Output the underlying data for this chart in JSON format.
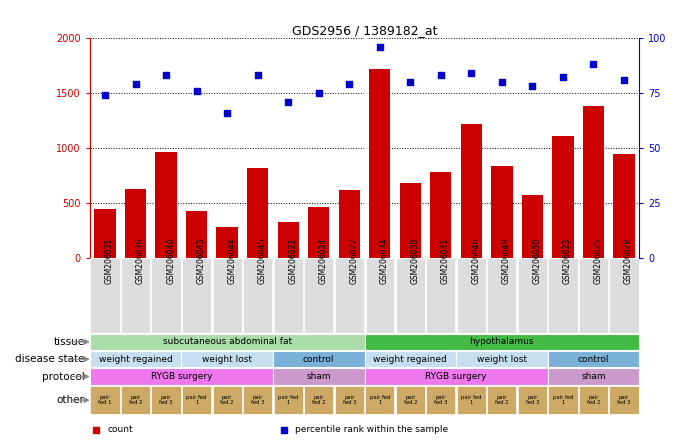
{
  "title": "GDS2956 / 1389182_at",
  "samples": [
    "GSM206031",
    "GSM206036",
    "GSM206040",
    "GSM206043",
    "GSM206044",
    "GSM206045",
    "GSM206022",
    "GSM206024",
    "GSM206027",
    "GSM206034",
    "GSM206038",
    "GSM206041",
    "GSM206046",
    "GSM206049",
    "GSM206050",
    "GSM206023",
    "GSM206025",
    "GSM206028"
  ],
  "bar_values": [
    450,
    630,
    960,
    430,
    280,
    820,
    330,
    470,
    620,
    1720,
    680,
    780,
    1220,
    840,
    570,
    1110,
    1380,
    950
  ],
  "dot_values_pct": [
    74,
    79,
    83,
    76,
    66,
    83,
    71,
    75,
    79,
    96,
    80,
    83,
    84,
    80,
    78,
    82,
    88,
    81
  ],
  "ylim_left": [
    0,
    2000
  ],
  "ylim_right": [
    0,
    100
  ],
  "yticks_left": [
    0,
    500,
    1000,
    1500,
    2000
  ],
  "yticks_right": [
    0,
    25,
    50,
    75,
    100
  ],
  "bar_color": "#cc0000",
  "dot_color": "#0000cc",
  "bg_color": "#ffffff",
  "sample_bg_color": "#dddddd",
  "tissue_row": {
    "label": "tissue",
    "spans": [
      {
        "text": "subcutaneous abdominal fat",
        "start": 0,
        "end": 9,
        "color": "#aaddaa"
      },
      {
        "text": "hypothalamus",
        "start": 9,
        "end": 18,
        "color": "#44bb44"
      }
    ]
  },
  "disease_row": {
    "label": "disease state",
    "spans": [
      {
        "text": "weight regained",
        "start": 0,
        "end": 3,
        "color": "#c5dff0"
      },
      {
        "text": "weight lost",
        "start": 3,
        "end": 6,
        "color": "#c5dff0"
      },
      {
        "text": "control",
        "start": 6,
        "end": 9,
        "color": "#7ab0d8"
      },
      {
        "text": "weight regained",
        "start": 9,
        "end": 12,
        "color": "#c5dff0"
      },
      {
        "text": "weight lost",
        "start": 12,
        "end": 15,
        "color": "#c5dff0"
      },
      {
        "text": "control",
        "start": 15,
        "end": 18,
        "color": "#7ab0d8"
      }
    ]
  },
  "protocol_row": {
    "label": "protocol",
    "spans": [
      {
        "text": "RYGB surgery",
        "start": 0,
        "end": 6,
        "color": "#ee77ee"
      },
      {
        "text": "sham",
        "start": 6,
        "end": 9,
        "color": "#cc99cc"
      },
      {
        "text": "RYGB surgery",
        "start": 9,
        "end": 15,
        "color": "#ee77ee"
      },
      {
        "text": "sham",
        "start": 15,
        "end": 18,
        "color": "#cc99cc"
      }
    ]
  },
  "other_row": {
    "label": "other",
    "cells": [
      {
        "text": "pair\nfed 1",
        "color": "#ccaa66"
      },
      {
        "text": "pair\nfed 2",
        "color": "#ccaa66"
      },
      {
        "text": "pair\nfed 3",
        "color": "#ccaa66"
      },
      {
        "text": "pair fed\n1",
        "color": "#ccaa66"
      },
      {
        "text": "pair\nfed 2",
        "color": "#ccaa66"
      },
      {
        "text": "pair\nfed 3",
        "color": "#ccaa66"
      },
      {
        "text": "pair fed\n1",
        "color": "#ccaa66"
      },
      {
        "text": "pair\nfed 2",
        "color": "#ccaa66"
      },
      {
        "text": "pair\nfed 3",
        "color": "#ccaa66"
      },
      {
        "text": "pair fed\n1",
        "color": "#ccaa66"
      },
      {
        "text": "pair\nfed 2",
        "color": "#ccaa66"
      },
      {
        "text": "pair\nfed 3",
        "color": "#ccaa66"
      },
      {
        "text": "pair fed\n1",
        "color": "#ccaa66"
      },
      {
        "text": "pair\nfed 2",
        "color": "#ccaa66"
      },
      {
        "text": "pair\nfed 3",
        "color": "#ccaa66"
      },
      {
        "text": "pair fed\n1",
        "color": "#ccaa66"
      },
      {
        "text": "pair\nfed 2",
        "color": "#ccaa66"
      },
      {
        "text": "pair\nfed 3",
        "color": "#ccaa66"
      }
    ]
  },
  "legend": [
    {
      "label": "count",
      "color": "#cc0000"
    },
    {
      "label": "percentile rank within the sample",
      "color": "#0000cc"
    }
  ],
  "arrow_color": "#888888",
  "label_fontsize": 7.5,
  "ann_fontsize": 6.5,
  "title_fontsize": 9
}
